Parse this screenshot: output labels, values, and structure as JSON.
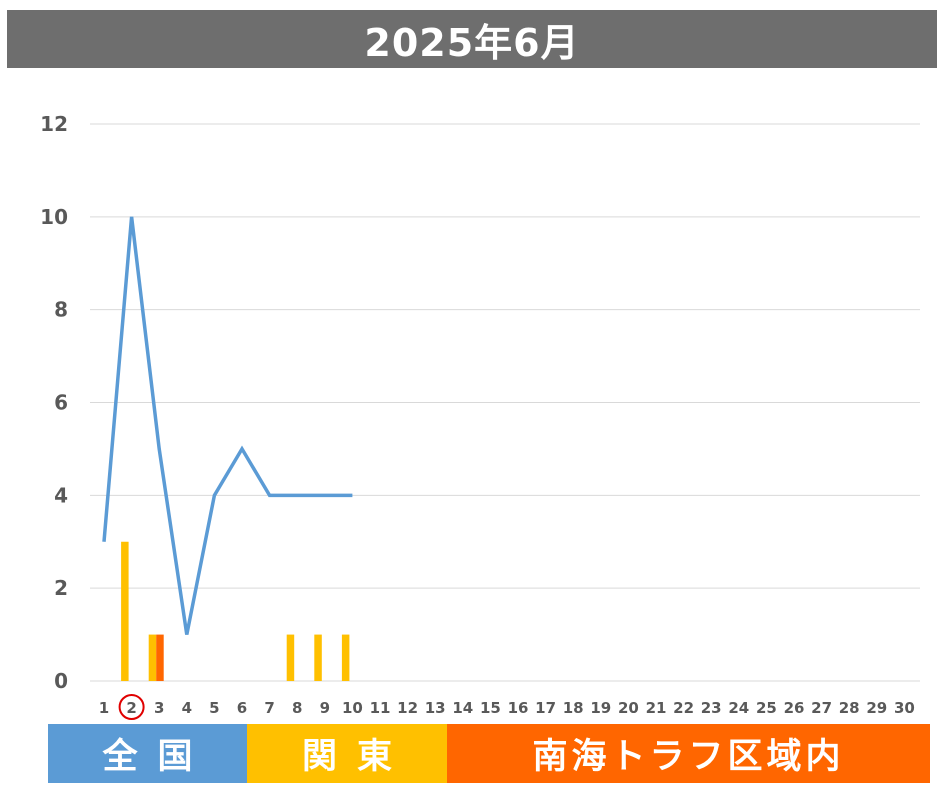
{
  "header": {
    "title": "2025年6月"
  },
  "colors": {
    "title_bg": "#6e6e6e",
    "line": "#5b9bd5",
    "bar_kanto": "#ffc000",
    "bar_nankai": "#ff6600",
    "grid": "#d9d9d9",
    "highlight_circle": "#e00000"
  },
  "legend": {
    "items": [
      {
        "label": "全国",
        "color": "#5b9bd5"
      },
      {
        "label": "関東",
        "color": "#ffc000"
      },
      {
        "label": "南海トラフ区域内",
        "color": "#ff6600"
      }
    ]
  },
  "chart_data": {
    "type": "bar",
    "title": "2025年6月",
    "xlabel": "",
    "ylabel": "",
    "ylim": [
      0,
      12
    ],
    "yticks": [
      0,
      2,
      4,
      6,
      8,
      10,
      12
    ],
    "grid": true,
    "highlighted_category": "2",
    "categories": [
      "1",
      "2",
      "3",
      "4",
      "5",
      "6",
      "7",
      "8",
      "9",
      "10",
      "11",
      "12",
      "13",
      "14",
      "15",
      "16",
      "17",
      "18",
      "19",
      "20",
      "21",
      "22",
      "23",
      "24",
      "25",
      "26",
      "27",
      "28",
      "29",
      "30"
    ],
    "series": [
      {
        "name": "全国",
        "type": "line",
        "color": "#5b9bd5",
        "values": [
          3,
          10,
          5,
          1,
          4,
          5,
          4,
          4,
          4,
          4,
          null,
          null,
          null,
          null,
          null,
          null,
          null,
          null,
          null,
          null,
          null,
          null,
          null,
          null,
          null,
          null,
          null,
          null,
          null,
          null
        ]
      },
      {
        "name": "関東",
        "type": "bar",
        "color": "#ffc000",
        "values": [
          0,
          3,
          1,
          0,
          0,
          0,
          0,
          1,
          1,
          1,
          0,
          0,
          0,
          0,
          0,
          0,
          0,
          0,
          0,
          0,
          0,
          0,
          0,
          0,
          0,
          0,
          0,
          0,
          0,
          0
        ]
      },
      {
        "name": "南海トラフ区域内",
        "type": "bar",
        "color": "#ff6600",
        "values": [
          0,
          0,
          1,
          0,
          0,
          0,
          0,
          0,
          0,
          0,
          0,
          0,
          0,
          0,
          0,
          0,
          0,
          0,
          0,
          0,
          0,
          0,
          0,
          0,
          0,
          0,
          0,
          0,
          0,
          0
        ]
      }
    ]
  }
}
